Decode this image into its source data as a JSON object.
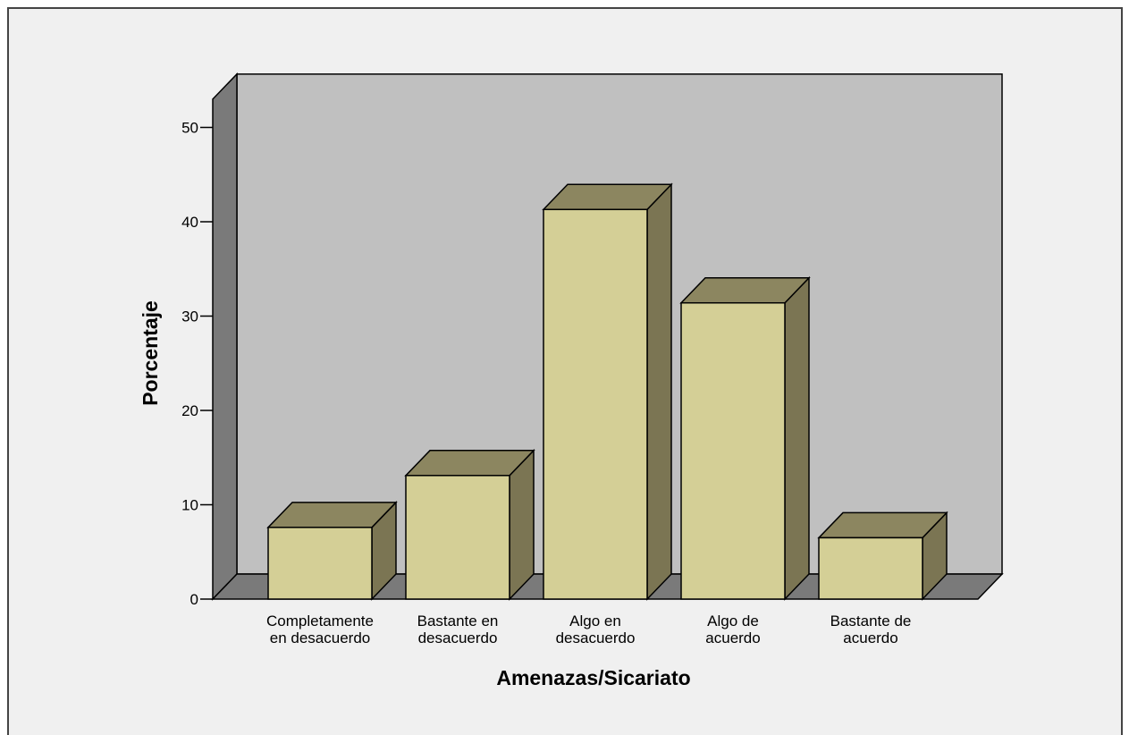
{
  "chart_data": {
    "type": "bar",
    "title": "",
    "xlabel": "Amenazas/Sicariato",
    "ylabel": "Porcentaje",
    "categories": [
      [
        "Completamente",
        "en desacuerdo"
      ],
      [
        "Bastante en",
        "desacuerdo"
      ],
      [
        "Algo en",
        "desacuerdo"
      ],
      [
        "Algo de",
        "acuerdo"
      ],
      [
        "Bastante de",
        "acuerdo"
      ]
    ],
    "values": [
      7.6,
      13.1,
      41.3,
      31.4,
      6.5
    ],
    "ylim": [
      0,
      50
    ],
    "yticks": [
      0,
      10,
      20,
      30,
      40,
      50
    ],
    "grid": false,
    "legend": "none",
    "style": "3d",
    "colors": {
      "bar_front": "#d4cf96",
      "bar_top": "#8c8660",
      "bar_side": "#7b7553",
      "back_wall": "#c0c0c0",
      "side_wall": "#7a7a7a",
      "floor": "#7a7a7a",
      "chart_background": "#f0f0f0"
    }
  }
}
